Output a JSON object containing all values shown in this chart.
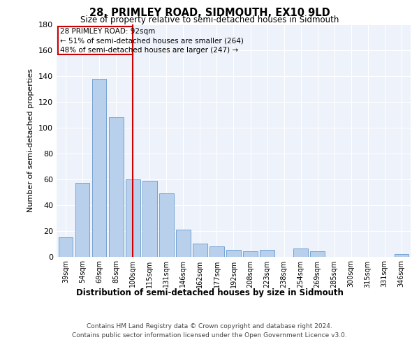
{
  "title": "28, PRIMLEY ROAD, SIDMOUTH, EX10 9LD",
  "subtitle": "Size of property relative to semi-detached houses in Sidmouth",
  "xlabel": "Distribution of semi-detached houses by size in Sidmouth",
  "ylabel": "Number of semi-detached properties",
  "categories": [
    "39sqm",
    "54sqm",
    "69sqm",
    "85sqm",
    "100sqm",
    "115sqm",
    "131sqm",
    "146sqm",
    "162sqm",
    "177sqm",
    "192sqm",
    "208sqm",
    "223sqm",
    "238sqm",
    "254sqm",
    "269sqm",
    "285sqm",
    "300sqm",
    "315sqm",
    "331sqm",
    "346sqm"
  ],
  "values": [
    15,
    57,
    138,
    108,
    60,
    59,
    49,
    21,
    10,
    8,
    5,
    4,
    5,
    0,
    6,
    4,
    0,
    0,
    0,
    0,
    2
  ],
  "bar_color": "#b8d0eb",
  "bar_edge_color": "#6699cc",
  "vline_x": 4.0,
  "vline_color": "#cc0000",
  "annotation_title": "28 PRIMLEY ROAD: 92sqm",
  "annotation_line1": "← 51% of semi-detached houses are smaller (264)",
  "annotation_line2": "48% of semi-detached houses are larger (247) →",
  "annotation_box_color": "#cc0000",
  "ylim": [
    0,
    180
  ],
  "yticks": [
    0,
    20,
    40,
    60,
    80,
    100,
    120,
    140,
    160,
    180
  ],
  "footer1": "Contains HM Land Registry data © Crown copyright and database right 2024.",
  "footer2": "Contains public sector information licensed under the Open Government Licence v3.0.",
  "plot_bg_color": "#eef2fa"
}
